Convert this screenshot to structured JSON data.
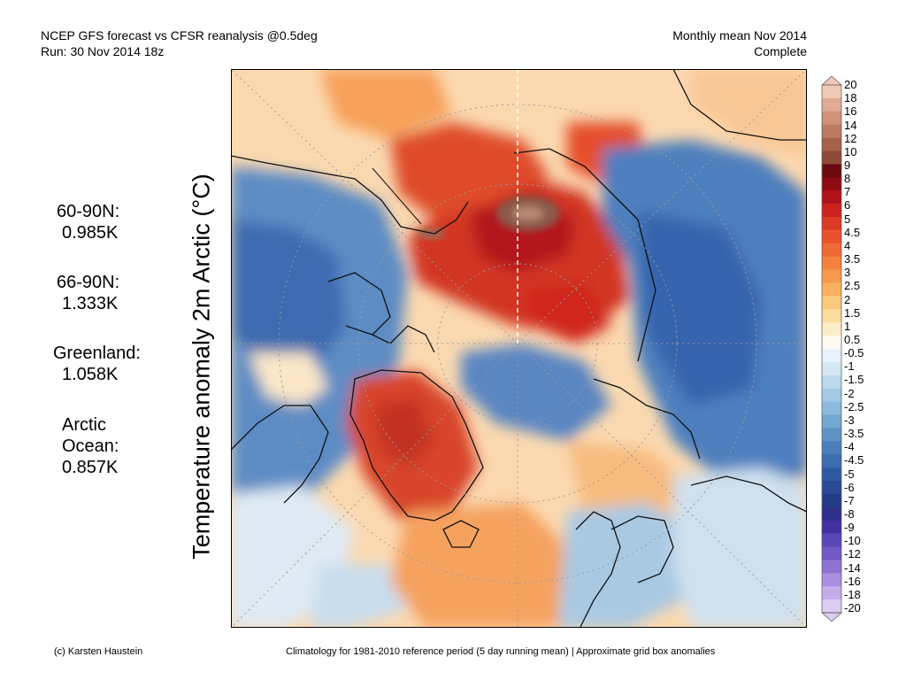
{
  "header": {
    "title_line1": "NCEP GFS forecast vs CFSR reanalysis @0.5deg",
    "title_line2": "Run: 30 Nov 2014 18z",
    "right_line1": "Monthly mean Nov 2014",
    "right_line2": "Complete"
  },
  "ylabel": "Temperature anomaly 2m Arctic (°C)",
  "stats": {
    "n60_label": "60-90N:",
    "n60_value": "0.985K",
    "n66_label": "66-90N:",
    "n66_value": "1.333K",
    "greenland_label": "Greenland:",
    "greenland_value": "1.058K",
    "arctic_label_1": "Arctic",
    "arctic_label_2": "Ocean:",
    "arctic_value": "0.857K"
  },
  "footer": {
    "credit": "(c) Karsten Haustein",
    "note": "Climatology for 1981-2010 reference period (5 day running mean) | Approximate grid box anomalies"
  },
  "colorbar": {
    "labels": [
      "20",
      "18",
      "16",
      "14",
      "12",
      "10",
      "9",
      "8",
      "7",
      "6",
      "5",
      "4.5",
      "4",
      "3.5",
      "3",
      "2.5",
      "2",
      "1.5",
      "1",
      "0.5",
      "-0.5",
      "-1",
      "-1.5",
      "-2",
      "-2.5",
      "-3",
      "-3.5",
      "-4",
      "-4.5",
      "-5",
      "-6",
      "-7",
      "-8",
      "-9",
      "-10",
      "-12",
      "-14",
      "-16",
      "-18",
      "-20"
    ],
    "colors": [
      "#f0c9b7",
      "#e0ac93",
      "#cf9278",
      "#bd7a62",
      "#a7614a",
      "#8f4a37",
      "#6b0a10",
      "#900c14",
      "#b0131a",
      "#cc221e",
      "#dc3a26",
      "#e8532e",
      "#ef6a36",
      "#f4823f",
      "#f79a4d",
      "#f9b161",
      "#fbc97d",
      "#fcdc9e",
      "#fdedc7",
      "#fff8ee",
      "#e8f2fa",
      "#d4e8f4",
      "#bcdaec",
      "#a3cae3",
      "#8bbada",
      "#74a7d1",
      "#5e93c6",
      "#4a7fba",
      "#3b6caf",
      "#2f5aa3",
      "#294a95",
      "#243b87",
      "#2c2e8a",
      "#4030a0",
      "#5a46b8",
      "#7058c5",
      "#8c72d3",
      "#a88fe0",
      "#c4aeea",
      "#dccdf3"
    ]
  }
}
